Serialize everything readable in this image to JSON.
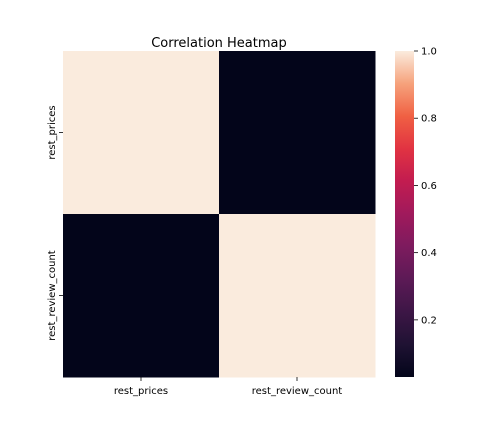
{
  "chart_data": {
    "type": "heatmap",
    "title": "Correlation Heatmap",
    "x_labels": [
      "rest_prices",
      "rest_review_count"
    ],
    "y_labels": [
      "rest_prices",
      "rest_review_count"
    ],
    "values": [
      [
        1.0,
        0.03
      ],
      [
        0.03,
        1.0
      ]
    ],
    "colorbar": {
      "range": [
        0.03,
        1.0
      ],
      "ticks": [
        0.2,
        0.4,
        0.6,
        0.8,
        1.0
      ],
      "tick_labels": [
        "0.2",
        "0.4",
        "0.6",
        "0.8",
        "1.0"
      ],
      "colormap": "rocket"
    },
    "xlabel": "",
    "ylabel": "",
    "grid": false
  }
}
